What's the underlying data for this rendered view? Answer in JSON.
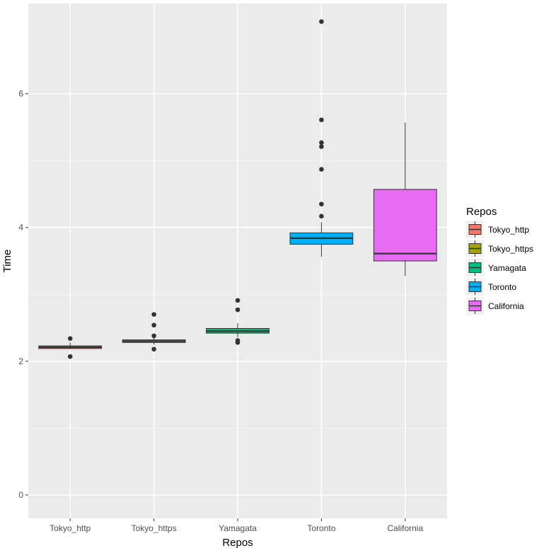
{
  "chart_data": {
    "type": "boxplot",
    "xlabel": "Repos",
    "ylabel": "Time",
    "ylim": [
      -0.35,
      7.35
    ],
    "yticks": [
      0,
      2,
      4,
      6
    ],
    "grid": true,
    "legend": {
      "title": "Repos",
      "position": "right"
    },
    "categories": [
      "Tokyo_http",
      "Tokyo_https",
      "Yamagata",
      "Toronto",
      "California"
    ],
    "series": [
      {
        "name": "Tokyo_http",
        "color": "#F8766D",
        "whisker_low": 2.18,
        "q1": 2.19,
        "median": 2.21,
        "q3": 2.23,
        "whisker_high": 2.28,
        "outliers": [
          2.34,
          2.07
        ]
      },
      {
        "name": "Tokyo_https",
        "color": "#A3A500",
        "whisker_low": 2.25,
        "q1": 2.28,
        "median": 2.3,
        "q3": 2.32,
        "whisker_high": 2.37,
        "outliers": [
          2.7,
          2.54,
          2.38,
          2.18
        ]
      },
      {
        "name": "Yamagata",
        "color": "#00BF7D",
        "whisker_low": 2.36,
        "q1": 2.42,
        "median": 2.45,
        "q3": 2.49,
        "whisker_high": 2.57,
        "outliers": [
          2.91,
          2.77,
          2.31,
          2.28
        ]
      },
      {
        "name": "Toronto",
        "color": "#00B0F6",
        "whisker_low": 3.56,
        "q1": 3.75,
        "median": 3.84,
        "q3": 3.92,
        "whisker_high": 4.08,
        "outliers": [
          7.08,
          5.61,
          5.27,
          5.21,
          4.87,
          4.35,
          4.17
        ]
      },
      {
        "name": "California",
        "color": "#E76BF3",
        "whisker_low": 3.27,
        "q1": 3.5,
        "median": 3.61,
        "q3": 4.57,
        "whisker_high": 5.57,
        "outliers": []
      }
    ]
  }
}
